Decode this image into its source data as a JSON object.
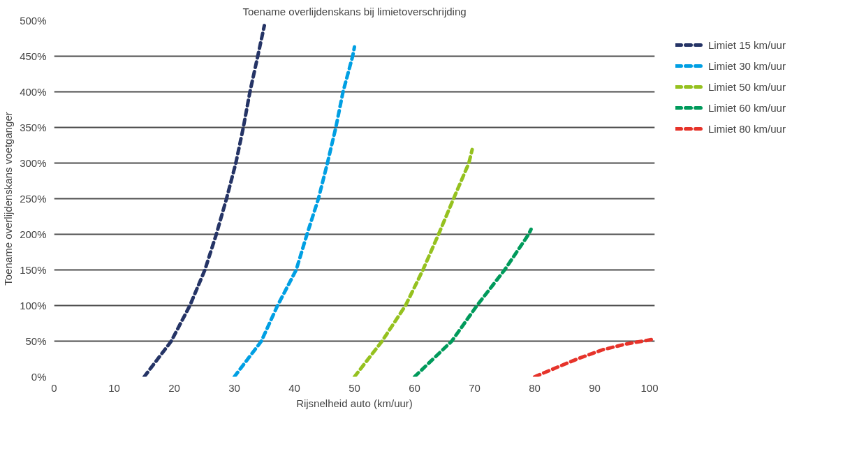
{
  "chart_data": {
    "type": "line",
    "title": "Toename overlijdenskans bij limietoverschrijding",
    "xlabel": "Rijsnelheid auto (km/uur)",
    "ylabel": "Toename overlijdenskans voetganger",
    "xlim": [
      0,
      100
    ],
    "xticks": [
      0,
      10,
      20,
      30,
      40,
      50,
      60,
      70,
      80,
      90,
      100
    ],
    "ylim": [
      0,
      500
    ],
    "yticks": [
      {
        "value": 0,
        "label": "0%"
      },
      {
        "value": 50,
        "label": "50%"
      },
      {
        "value": 100,
        "label": "100%"
      },
      {
        "value": 150,
        "label": "150%"
      },
      {
        "value": 200,
        "label": "200%"
      },
      {
        "value": 250,
        "label": "250%"
      },
      {
        "value": 300,
        "label": "300%"
      },
      {
        "value": 350,
        "label": "350%"
      },
      {
        "value": 400,
        "label": "400%"
      },
      {
        "value": 450,
        "label": "450%"
      },
      {
        "value": 500,
        "label": "500%"
      }
    ],
    "grid": "y",
    "legend": "top right",
    "line_style": "dashed",
    "marker": "none",
    "series": [
      {
        "name": "Limiet 15 km/uur",
        "color": "#253466",
        "x": [
          15,
          19.5,
          22.6,
          25.1,
          27.0,
          28.7,
          30.25,
          31.5,
          32.6,
          33.9,
          35.0
        ],
        "values": [
          0,
          50,
          100,
          150,
          200,
          250,
          300,
          350,
          400,
          450,
          493
        ]
      },
      {
        "name": "Limiet 30 km/uur",
        "color": "#009fe3",
        "x": [
          30,
          34.5,
          37.2,
          40.3,
          42.1,
          44.0,
          45.5,
          46.9,
          48.1,
          49.7,
          50.0
        ],
        "values": [
          0,
          50,
          100,
          150,
          200,
          250,
          300,
          350,
          400,
          450,
          463
        ]
      },
      {
        "name": "Limiet 50 km/uur",
        "color": "#95c11f",
        "x": [
          50,
          54.6,
          58.5,
          61.4,
          64.0,
          66.5,
          69.05,
          69.6
        ],
        "values": [
          0,
          50,
          100,
          150,
          200,
          250,
          300,
          319
        ]
      },
      {
        "name": "Limiet 60 km/uur",
        "color": "#009a5b",
        "x": [
          60,
          66.2,
          70.4,
          75.0,
          79.0,
          79.4
        ],
        "values": [
          0,
          50,
          100,
          150,
          200,
          207
        ]
      },
      {
        "name": "Limiet 80 km/uur",
        "color": "#e6332a",
        "x": [
          80,
          83.65,
          87.1,
          91.35,
          95.2,
          100
        ],
        "values": [
          0,
          13,
          25,
          38,
          46,
          53
        ]
      }
    ]
  }
}
